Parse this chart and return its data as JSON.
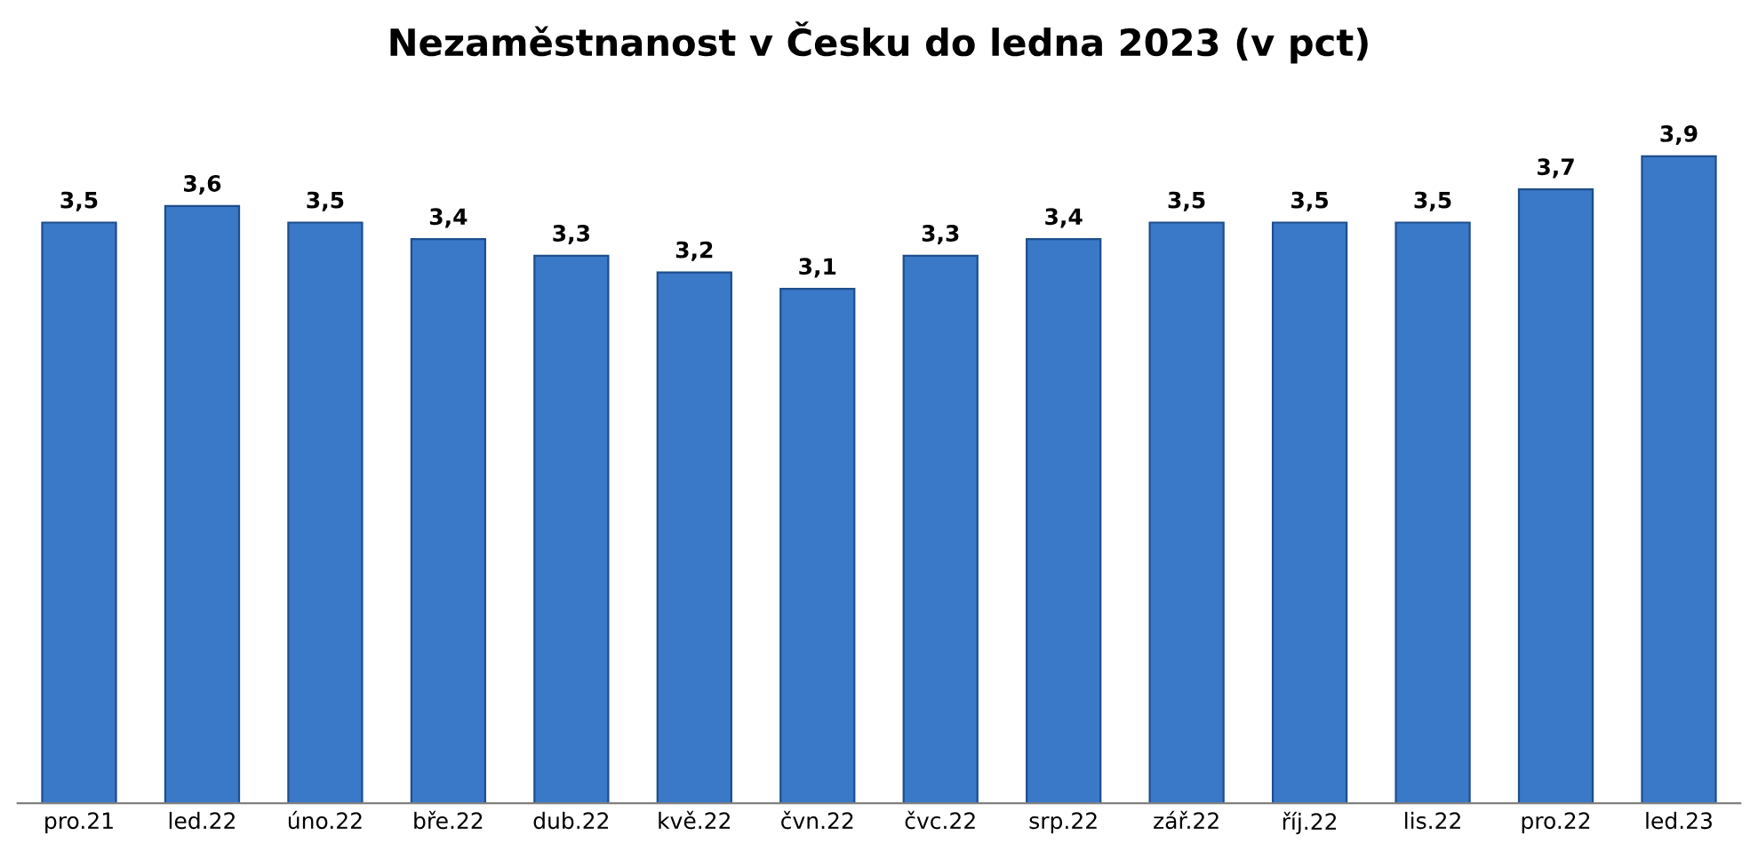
{
  "chart_data": {
    "type": "bar",
    "title": "Nezaměstnanost v Česku do ledna 2023 (v pct)",
    "categories": [
      "pro.21",
      "led.22",
      "úno.22",
      "bře.22",
      "dub.22",
      "kvě.22",
      "čvn.22",
      "čvc.22",
      "srp.22",
      "zář.22",
      "říj.22",
      "lis.22",
      "pro.22",
      "led.23"
    ],
    "values": [
      3.5,
      3.6,
      3.5,
      3.4,
      3.3,
      3.2,
      3.1,
      3.3,
      3.4,
      3.5,
      3.5,
      3.5,
      3.7,
      3.9
    ],
    "value_labels": [
      "3,5",
      "3,6",
      "3,5",
      "3,4",
      "3,3",
      "3,2",
      "3,1",
      "3,3",
      "3,4",
      "3,5",
      "3,5",
      "3,5",
      "3,7",
      "3,9"
    ],
    "color": "#3a78c8",
    "tick_labels": "x",
    "grid": false,
    "legend": false
  }
}
